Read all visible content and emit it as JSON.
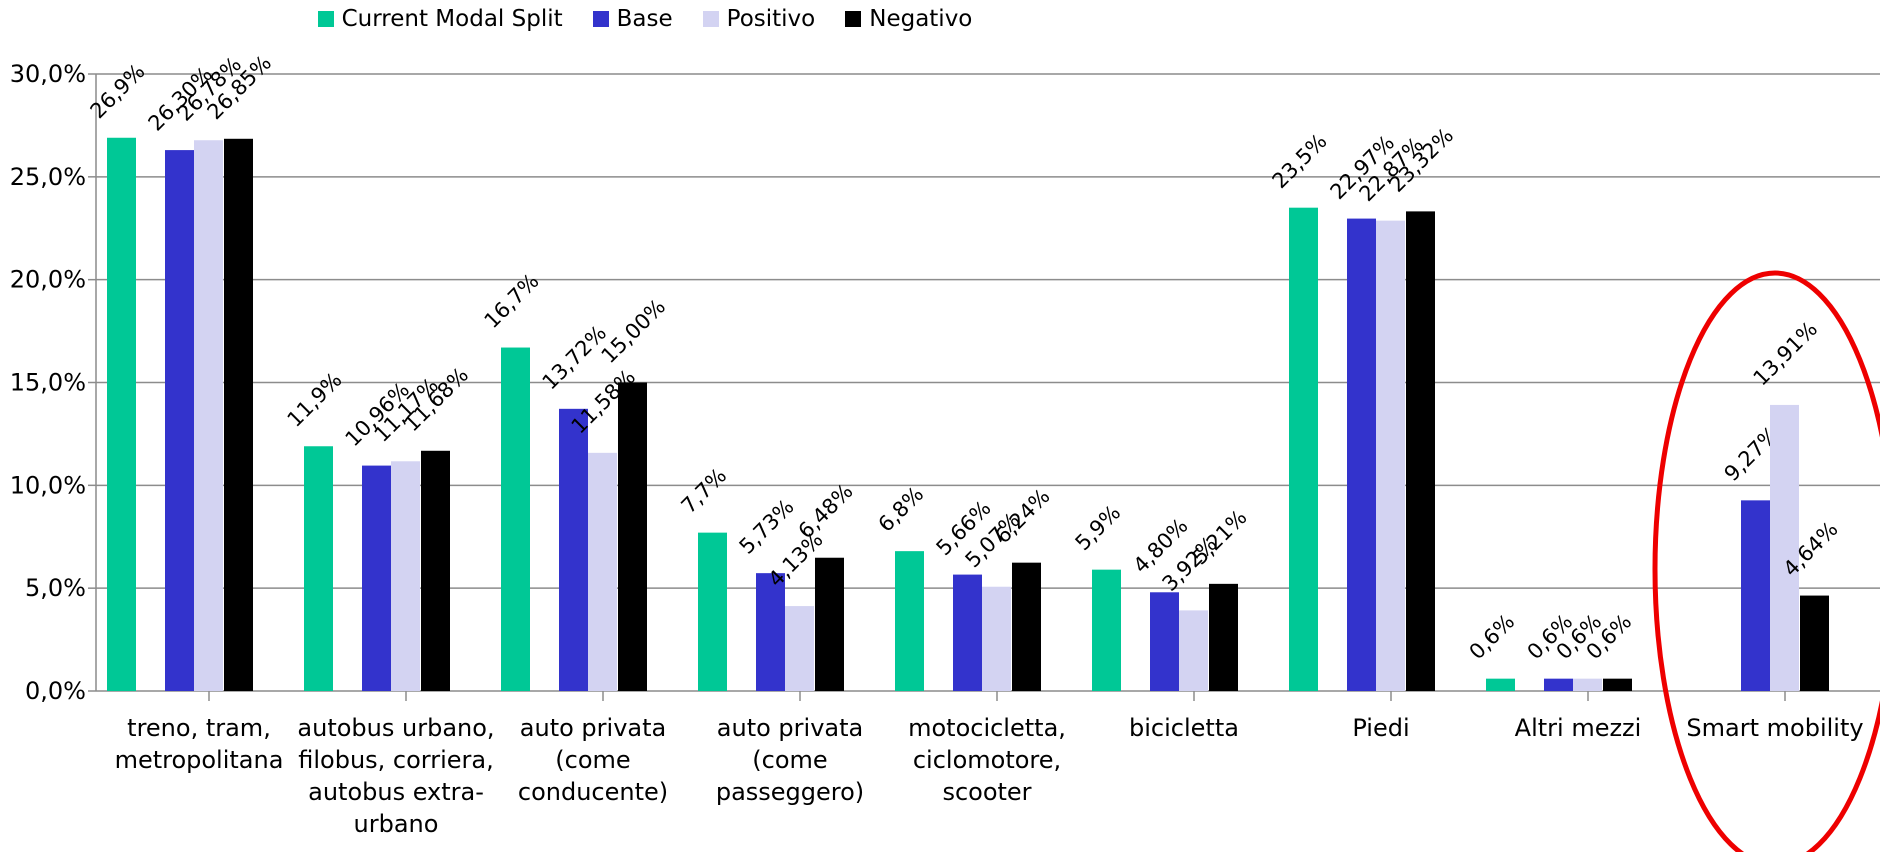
{
  "chart_data": {
    "type": "bar",
    "categories": [
      "treno, tram, metropolitana",
      "autobus urbano, filobus, corriera, autobus extra-urbano",
      "auto privata (come conducente)",
      "auto privata (come passeggero)",
      "motocicletta, ciclomotore, scooter",
      "bicicletta",
      "Piedi",
      "Altri mezzi",
      "Smart mobility"
    ],
    "category_lines": [
      [
        "treno, tram,",
        "metropolitana"
      ],
      [
        "autobus urbano,",
        "filobus, corriera,",
        "autobus extra-",
        "urbano"
      ],
      [
        "auto privata",
        "(come",
        "conducente)"
      ],
      [
        "auto privata",
        "(come",
        "passeggero)"
      ],
      [
        "motocicletta,",
        "ciclomotore,",
        "scooter"
      ],
      [
        "bicicletta"
      ],
      [
        "Piedi"
      ],
      [
        "Altri mezzi"
      ],
      [
        "Smart mobility"
      ]
    ],
    "series": [
      {
        "name": "Current Modal Split",
        "color": "#00C896",
        "values": [
          26.9,
          11.9,
          16.7,
          7.7,
          6.8,
          5.9,
          23.5,
          0.6,
          null
        ],
        "labels": [
          "26,9%",
          "11,9%",
          "16,7%",
          "7,7%",
          "6,8%",
          "5,9%",
          "23,5%",
          "0,6%",
          ""
        ]
      },
      {
        "name": "Base",
        "color": "#3333CC",
        "values": [
          26.3,
          10.96,
          13.72,
          5.73,
          5.66,
          4.8,
          22.97,
          0.6,
          9.27
        ],
        "labels": [
          "26,30%",
          "10,96%",
          "13,72%",
          "5,73%",
          "5,66%",
          "4,80%",
          "22,97%",
          "0,6%",
          "9,27%"
        ]
      },
      {
        "name": "Positivo",
        "color": "#D3D3F2",
        "values": [
          26.78,
          11.17,
          11.58,
          4.13,
          5.07,
          3.92,
          22.87,
          0.6,
          13.91
        ],
        "labels": [
          "26,78%",
          "11,17%",
          "11,58%",
          "4,13%",
          "5,07%",
          "3,92%",
          "22,87%",
          "0,6%",
          "13,91%"
        ]
      },
      {
        "name": "Negativo",
        "color": "#000000",
        "values": [
          26.85,
          11.68,
          15.0,
          6.48,
          6.24,
          5.21,
          23.32,
          0.6,
          4.64
        ],
        "labels": [
          "26,85%",
          "11,68%",
          "15,00%",
          "6,48%",
          "6,24%",
          "5,21%",
          "23,32%",
          "0,6%",
          "4,64%"
        ]
      }
    ],
    "yticks": [
      "0,0%",
      "5,0%",
      "10,0%",
      "15,0%",
      "20,0%",
      "25,0%",
      "30,0%"
    ],
    "ylim": [
      0,
      30
    ],
    "grid": true,
    "legend_position": "top",
    "highlight": {
      "category": "Smart mobility",
      "shape": "ellipse",
      "color": "#EE0000"
    }
  }
}
